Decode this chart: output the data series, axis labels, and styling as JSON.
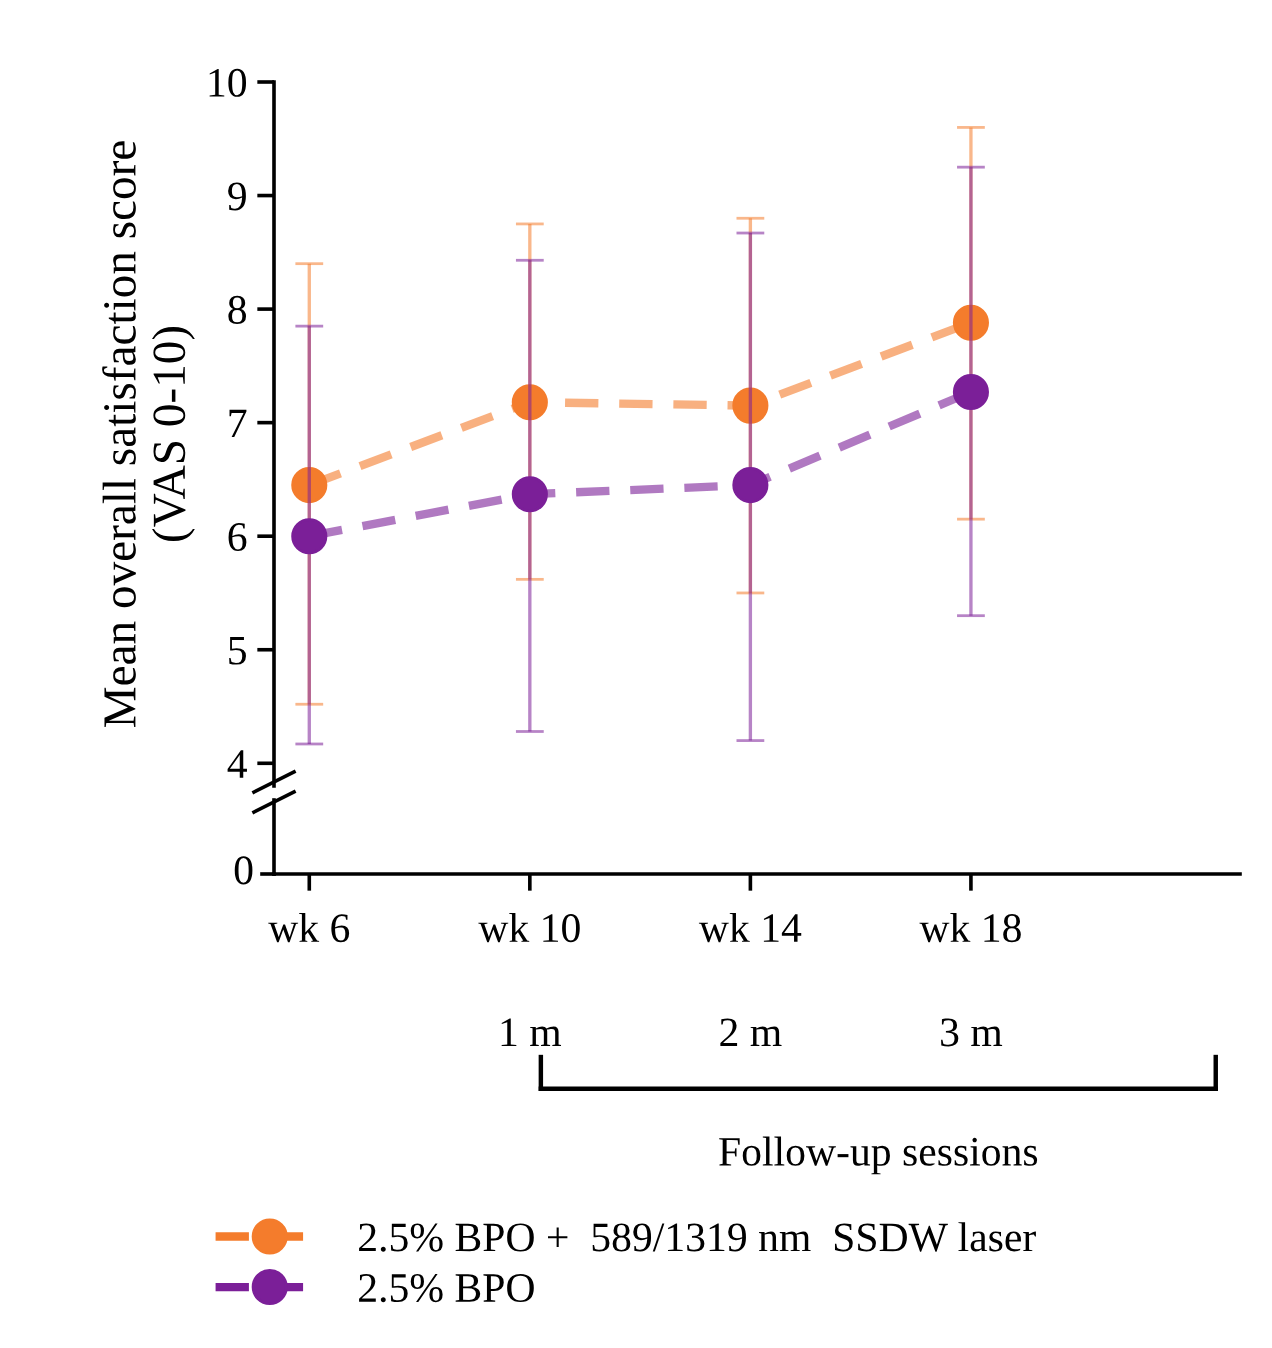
{
  "chart_data": {
    "type": "line",
    "categories": [
      "wk 6",
      "wk 10",
      "wk 14",
      "wk 18"
    ],
    "ylabel": "Mean overall satisfaction score\n(VAS 0-10)",
    "ylim": [
      3.8,
      10
    ],
    "yticks": [
      4,
      5,
      6,
      7,
      8,
      9,
      10
    ],
    "marker": "circle",
    "line_style": "dashed",
    "legend": "bottom",
    "series": [
      {
        "name": "2.5% BPO +  589/1319 nm  SSDW laser",
        "color": "#f47c2c",
        "values": [
          6.45,
          7.18,
          7.15,
          7.88
        ],
        "errors": [
          [
            4.52,
            8.4
          ],
          [
            5.62,
            8.75
          ],
          [
            5.5,
            8.8
          ],
          [
            6.15,
            9.6
          ]
        ]
      },
      {
        "name": "2.5% BPO",
        "color": "#7b1f98",
        "values": [
          6.0,
          6.37,
          6.45,
          7.27
        ],
        "errors": [
          [
            4.17,
            7.85
          ],
          [
            4.28,
            8.43
          ],
          [
            4.2,
            8.67
          ],
          [
            5.3,
            9.25
          ]
        ]
      }
    ],
    "annotations": [
      "0",
      "1 m",
      "2 m",
      "3 m",
      "Follow-up sessions"
    ]
  }
}
